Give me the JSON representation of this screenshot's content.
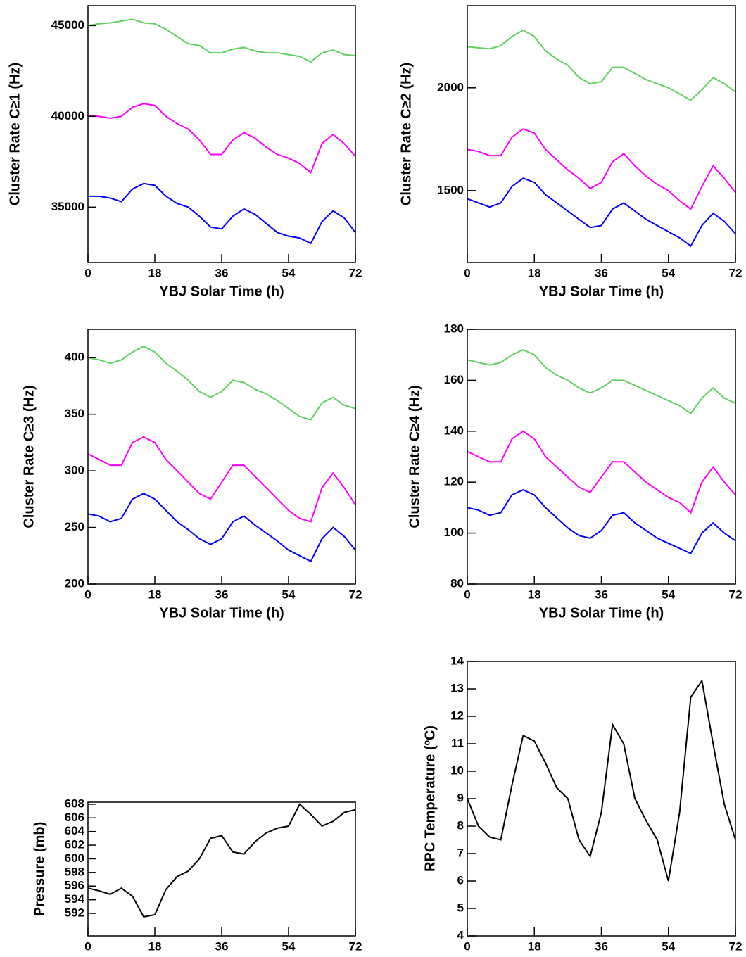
{
  "chart_data": [
    {
      "type": "line",
      "xlabel": "YBJ Solar Time (h)",
      "ylabel": "Cluster Rate C≥1 (Hz)",
      "x": [
        0,
        3,
        6,
        9,
        12,
        15,
        18,
        21,
        24,
        27,
        30,
        33,
        36,
        39,
        42,
        45,
        48,
        51,
        54,
        57,
        60,
        63,
        66,
        69,
        72
      ],
      "xlim": [
        0,
        72
      ],
      "xticks": [
        0,
        18,
        36,
        54,
        72
      ],
      "ylim": [
        31950,
        46100
      ],
      "yticks": [
        35000,
        40000,
        45000
      ],
      "series": [
        {
          "color": "#5fd35f",
          "values": [
            45000,
            45100,
            45150,
            45250,
            45350,
            45150,
            45100,
            44800,
            44400,
            44000,
            43900,
            43500,
            43500,
            43700,
            43800,
            43600,
            43500,
            43500,
            43400,
            43300,
            43000,
            43500,
            43650,
            43400,
            43350
          ]
        },
        {
          "color": "#ff00ff",
          "values": [
            40050,
            40000,
            39900,
            40000,
            40500,
            40700,
            40600,
            40000,
            39600,
            39300,
            38700,
            37900,
            37900,
            38700,
            39100,
            38800,
            38300,
            37900,
            37700,
            37400,
            36900,
            38500,
            39000,
            38500,
            37800
          ]
        },
        {
          "color": "#0000ff",
          "values": [
            35600,
            35600,
            35500,
            35300,
            36000,
            36300,
            36200,
            35600,
            35200,
            35000,
            34500,
            33900,
            33800,
            34500,
            34900,
            34600,
            34100,
            33600,
            33400,
            33300,
            33000,
            34200,
            34800,
            34400,
            33600
          ]
        }
      ]
    },
    {
      "type": "line",
      "xlabel": "YBJ Solar Time (h)",
      "ylabel": "Cluster Rate C≥2 (Hz)",
      "x": [
        0,
        3,
        6,
        9,
        12,
        15,
        18,
        21,
        24,
        27,
        30,
        33,
        36,
        39,
        42,
        45,
        48,
        51,
        54,
        57,
        60,
        63,
        66,
        69,
        72
      ],
      "xlim": [
        0,
        72
      ],
      "xticks": [
        0,
        18,
        36,
        54,
        72
      ],
      "ylim": [
        1150,
        2400
      ],
      "yticks": [
        1500,
        2000
      ],
      "series": [
        {
          "color": "#5fd35f",
          "values": [
            2200,
            2195,
            2190,
            2205,
            2250,
            2280,
            2250,
            2180,
            2140,
            2110,
            2050,
            2020,
            2030,
            2100,
            2100,
            2070,
            2040,
            2020,
            2000,
            1970,
            1940,
            1990,
            2050,
            2020,
            1980
          ]
        },
        {
          "color": "#ff00ff",
          "values": [
            1700,
            1690,
            1670,
            1670,
            1760,
            1800,
            1780,
            1700,
            1650,
            1600,
            1560,
            1510,
            1540,
            1640,
            1680,
            1620,
            1570,
            1530,
            1500,
            1450,
            1410,
            1520,
            1620,
            1560,
            1490
          ]
        },
        {
          "color": "#0000ff",
          "values": [
            1460,
            1440,
            1420,
            1440,
            1520,
            1560,
            1540,
            1480,
            1440,
            1400,
            1360,
            1320,
            1330,
            1410,
            1440,
            1400,
            1360,
            1330,
            1300,
            1270,
            1230,
            1330,
            1390,
            1350,
            1290
          ]
        }
      ]
    },
    {
      "type": "line",
      "xlabel": "YBJ Solar Time (h)",
      "ylabel": "Cluster Rate C≥3 (Hz)",
      "x": [
        0,
        3,
        6,
        9,
        12,
        15,
        18,
        21,
        24,
        27,
        30,
        33,
        36,
        39,
        42,
        45,
        48,
        51,
        54,
        57,
        60,
        63,
        66,
        69,
        72
      ],
      "xlim": [
        0,
        72
      ],
      "xticks": [
        0,
        18,
        36,
        54,
        72
      ],
      "ylim": [
        200,
        425
      ],
      "yticks": [
        200,
        250,
        300,
        350,
        400
      ],
      "series": [
        {
          "color": "#5fd35f",
          "values": [
            400,
            398,
            395,
            398,
            405,
            410,
            405,
            395,
            388,
            380,
            370,
            365,
            370,
            380,
            378,
            372,
            368,
            362,
            355,
            348,
            345,
            360,
            365,
            358,
            355
          ]
        },
        {
          "color": "#ff00ff",
          "values": [
            315,
            310,
            305,
            305,
            325,
            330,
            325,
            310,
            300,
            290,
            280,
            275,
            290,
            305,
            305,
            295,
            285,
            275,
            265,
            258,
            255,
            285,
            298,
            285,
            270
          ]
        },
        {
          "color": "#0000ff",
          "values": [
            262,
            260,
            255,
            258,
            275,
            280,
            275,
            265,
            255,
            248,
            240,
            235,
            240,
            255,
            260,
            252,
            245,
            238,
            230,
            225,
            220,
            240,
            250,
            242,
            230
          ]
        }
      ]
    },
    {
      "type": "line",
      "xlabel": "YBJ Solar Time (h)",
      "ylabel": "Cluster Rate C≥4 (Hz)",
      "x": [
        0,
        3,
        6,
        9,
        12,
        15,
        18,
        21,
        24,
        27,
        30,
        33,
        36,
        39,
        42,
        45,
        48,
        51,
        54,
        57,
        60,
        63,
        66,
        69,
        72
      ],
      "xlim": [
        0,
        72
      ],
      "xticks": [
        0,
        18,
        36,
        54,
        72
      ],
      "ylim": [
        80,
        180
      ],
      "yticks": [
        80,
        100,
        120,
        140,
        160,
        180
      ],
      "series": [
        {
          "color": "#5fd35f",
          "values": [
            168,
            167,
            166,
            167,
            170,
            172,
            170,
            165,
            162,
            160,
            157,
            155,
            157,
            160,
            160,
            158,
            156,
            154,
            152,
            150,
            147,
            153,
            157,
            153,
            151
          ]
        },
        {
          "color": "#ff00ff",
          "values": [
            132,
            130,
            128,
            128,
            137,
            140,
            137,
            130,
            126,
            122,
            118,
            116,
            122,
            128,
            128,
            124,
            120,
            117,
            114,
            112,
            108,
            120,
            126,
            120,
            115
          ]
        },
        {
          "color": "#0000ff",
          "values": [
            110,
            109,
            107,
            108,
            115,
            117,
            115,
            110,
            106,
            102,
            99,
            98,
            101,
            107,
            108,
            104,
            101,
            98,
            96,
            94,
            92,
            100,
            104,
            100,
            97
          ]
        }
      ]
    },
    {
      "type": "line",
      "xlabel": "YBJ Solar Time (h)",
      "ylabel": "Pressure (mb)",
      "x": [
        0,
        3,
        6,
        9,
        12,
        15,
        18,
        21,
        24,
        27,
        30,
        33,
        36,
        39,
        42,
        45,
        48,
        51,
        54,
        57,
        60,
        63,
        66,
        69,
        72
      ],
      "xlim": [
        0,
        72
      ],
      "xticks": [
        0,
        18,
        36,
        54,
        72
      ],
      "ylim": [
        588.7,
        608.3
      ],
      "yticks": [
        592,
        594,
        596,
        598,
        600,
        602,
        604,
        606,
        608
      ],
      "series": [
        {
          "color": "#000000",
          "values": [
            595.7,
            595.3,
            594.8,
            595.7,
            594.5,
            591.5,
            591.8,
            595.5,
            597.4,
            598.2,
            600.0,
            603.0,
            603.4,
            601.0,
            600.7,
            602.5,
            603.8,
            604.5,
            604.8,
            608.0,
            606.5,
            604.8,
            605.5,
            606.8,
            607.2
          ]
        }
      ]
    },
    {
      "type": "line",
      "xlabel": "YBJ Solar Time (h)",
      "ylabel": "RPC Temperature (ºC)",
      "x": [
        0,
        3,
        6,
        9,
        12,
        15,
        18,
        21,
        24,
        27,
        30,
        33,
        36,
        39,
        42,
        45,
        48,
        51,
        54,
        57,
        60,
        63,
        66,
        69,
        72
      ],
      "xlim": [
        0,
        72
      ],
      "xticks": [
        0,
        18,
        36,
        54,
        72
      ],
      "ylim": [
        4,
        14
      ],
      "yticks": [
        4,
        5,
        6,
        7,
        8,
        9,
        10,
        11,
        12,
        13,
        14
      ],
      "series": [
        {
          "color": "#000000",
          "values": [
            9.0,
            8.0,
            7.6,
            7.5,
            9.5,
            11.3,
            11.1,
            10.3,
            9.4,
            9.0,
            7.5,
            6.9,
            8.5,
            11.7,
            11.0,
            9.0,
            8.2,
            7.5,
            6.0,
            8.5,
            12.7,
            13.3,
            11.0,
            8.8,
            7.5
          ]
        }
      ]
    }
  ]
}
